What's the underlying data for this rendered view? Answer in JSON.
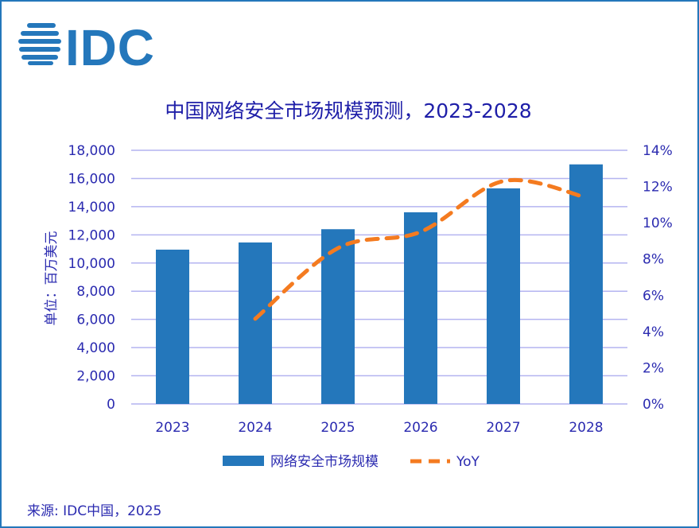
{
  "logo_text": "IDC",
  "source": "来源: IDC中国，2025",
  "colors": {
    "bar": "#2477bb",
    "line": "#f47b20",
    "grid": "#b4b4f0",
    "text": "#2b2bb0"
  },
  "chart_data": {
    "type": "bar",
    "title": "中国网络安全市场规模预测，2023-2028",
    "ylabel": "单位：百万美元",
    "categories": [
      "2023",
      "2024",
      "2025",
      "2026",
      "2027",
      "2028"
    ],
    "ylim": [
      0,
      18000
    ],
    "y_ticks": [
      "0",
      "2,000",
      "4,000",
      "6,000",
      "8,000",
      "10,000",
      "12,000",
      "14,000",
      "16,000",
      "18,000"
    ],
    "y2lim": [
      0,
      14
    ],
    "y2_ticks": [
      "0%",
      "2%",
      "4%",
      "6%",
      "8%",
      "10%",
      "12%",
      "14%"
    ],
    "grid": true,
    "legend_position": "bottom",
    "series": [
      {
        "name": "网络安全市场规模",
        "type": "bar",
        "axis": "left",
        "values": [
          10950,
          11460,
          12400,
          13600,
          15300,
          17000
        ]
      },
      {
        "name": "YoY",
        "type": "line",
        "style": "dashed",
        "axis": "right",
        "values": [
          null,
          4.7,
          8.6,
          9.5,
          12.3,
          11.4
        ]
      }
    ]
  }
}
